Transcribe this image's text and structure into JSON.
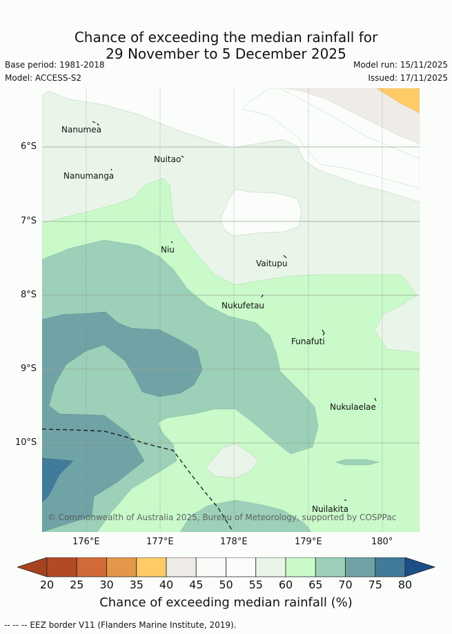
{
  "title": {
    "line1": "Chance of exceeding the median rainfall for",
    "line2": "29 November to 5 December 2025"
  },
  "meta": {
    "base_period": "Base period: 1981-2018",
    "model": "Model: ACCESS-S2",
    "model_run": "Model run: 15/11/2025",
    "issued": "Issued: 17/11/2025"
  },
  "map": {
    "copyright": "© Commonwealth of Australia 2025, Bureau of Meteorology, supported by COSPPac",
    "lat_labels": [
      "6°S",
      "7°S",
      "8°S",
      "9°S",
      "10°S"
    ],
    "lon_labels": [
      "176°E",
      "177°E",
      "178°E",
      "179°E",
      "180°"
    ],
    "islands": [
      "Nanumea",
      "Nuitao",
      "Nanumanga",
      "Niu",
      "Vaitupu",
      "Nukufetau",
      "Funafuti",
      "Nukulaelae",
      "Nuilakita"
    ]
  },
  "colorbar": {
    "ticks": [
      "20",
      "25",
      "30",
      "35",
      "40",
      "45",
      "50",
      "55",
      "60",
      "65",
      "70",
      "75",
      "80"
    ],
    "colors": [
      "#b24a25",
      "#d16a36",
      "#e3974a",
      "#fecb67",
      "#efebe6",
      "#fafbf9",
      "#fbfdfb",
      "#eaf5ea",
      "#caf9ca",
      "#9cd0b8",
      "#70a3a6",
      "#427b9a"
    ],
    "low_color": "#a8411f",
    "high_color": "#1d4e87",
    "label": "Chance of exceeding median rainfall (%)"
  },
  "footer": "-- -- -- EEZ border V11 (Flanders Marine Institute, 2019)."
}
